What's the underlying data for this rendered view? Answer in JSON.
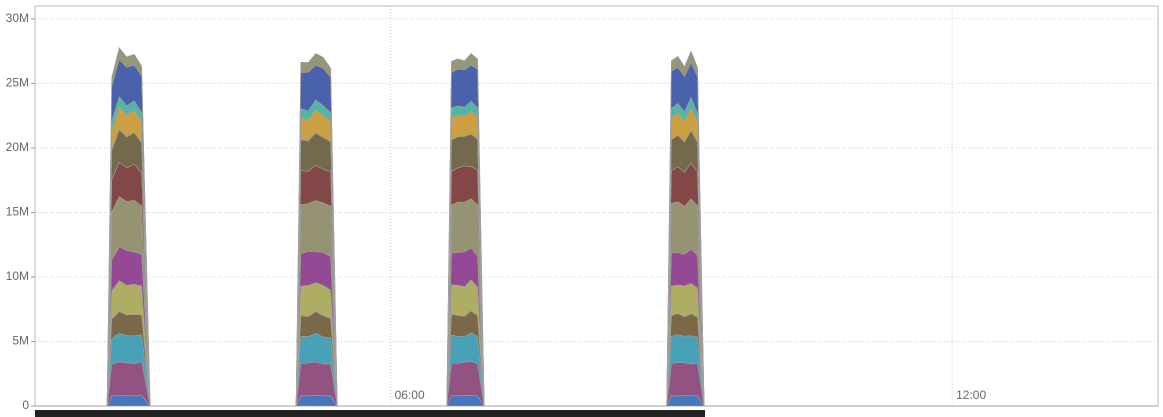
{
  "chart_data": {
    "type": "stacked_area",
    "x": [
      2.2,
      2.97,
      3.02,
      3.1,
      3.18,
      3.26,
      3.34,
      3.43,
      4.99,
      5.04,
      5.12,
      5.2,
      5.28,
      5.36,
      5.43,
      6.6,
      6.65,
      6.72,
      6.79,
      6.86,
      6.93,
      7.0,
      8.95,
      9.0,
      9.07,
      9.14,
      9.21,
      9.28,
      9.35,
      14.2
    ],
    "xlim": [
      2.2,
      14.2
    ],
    "xticks": [
      {
        "value": 6,
        "label": "06:00"
      },
      {
        "value": 12,
        "label": "12:00"
      }
    ],
    "ylim": [
      0,
      31000000
    ],
    "yticks": [
      0,
      {
        "value": 5000000,
        "label": "5M"
      },
      {
        "value": 10000000,
        "label": "10M"
      },
      {
        "value": 15000000,
        "label": "15M"
      },
      {
        "value": 20000000,
        "label": "20M"
      },
      {
        "value": 25000000,
        "label": "25M"
      },
      {
        "value": 30000000,
        "label": "30M"
      }
    ],
    "grid": true,
    "series": [
      {
        "color": "#3d6fb8",
        "values": [
          0,
          0,
          780000,
          820000,
          800000,
          790000,
          810000,
          0,
          0,
          800000,
          790000,
          820000,
          800000,
          780000,
          0,
          0,
          790000,
          810000,
          800000,
          820000,
          790000,
          0,
          0,
          800000,
          780000,
          810000,
          800000,
          790000,
          0,
          0
        ]
      },
      {
        "color": "#8c4a7c",
        "values": [
          0,
          0,
          2450000,
          2600000,
          2550000,
          2500000,
          2650000,
          0,
          0,
          2500000,
          2550000,
          2600000,
          2450000,
          2500000,
          0,
          0,
          2550000,
          2500000,
          2600000,
          2650000,
          2500000,
          0,
          0,
          2500000,
          2600000,
          2550000,
          2450000,
          2550000,
          0,
          0
        ]
      },
      {
        "color": "#3d9db3",
        "values": [
          0,
          0,
          2000000,
          2200000,
          2100000,
          2150000,
          2050000,
          0,
          0,
          2100000,
          2050000,
          2200000,
          2100000,
          2000000,
          0,
          0,
          2150000,
          2100000,
          2000000,
          2200000,
          2100000,
          0,
          0,
          2100000,
          2150000,
          2050000,
          2200000,
          2000000,
          0,
          0
        ]
      },
      {
        "color": "#73603f",
        "values": [
          0,
          0,
          1500000,
          1700000,
          1600000,
          1650000,
          1550000,
          0,
          0,
          1600000,
          1550000,
          1700000,
          1650000,
          1500000,
          0,
          0,
          1650000,
          1600000,
          1550000,
          1700000,
          1600000,
          0,
          0,
          1600000,
          1650000,
          1500000,
          1700000,
          1550000,
          0,
          0
        ]
      },
      {
        "color": "#aaa95c",
        "values": [
          0,
          0,
          2200000,
          2400000,
          2300000,
          2350000,
          2250000,
          0,
          0,
          2300000,
          2400000,
          2250000,
          2350000,
          2200000,
          0,
          0,
          2250000,
          2350000,
          2300000,
          2400000,
          2200000,
          0,
          0,
          2300000,
          2200000,
          2400000,
          2350000,
          2250000,
          0,
          0
        ]
      },
      {
        "color": "#8e3f8e",
        "values": [
          0,
          0,
          2400000,
          2600000,
          2700000,
          2500000,
          2450000,
          0,
          0,
          2500000,
          2650000,
          2400000,
          2550000,
          2600000,
          0,
          0,
          2450000,
          2550000,
          2700000,
          2500000,
          2400000,
          0,
          0,
          2600000,
          2500000,
          2450000,
          2650000,
          2550000,
          0,
          0
        ]
      },
      {
        "color": "#908d6a",
        "values": [
          0,
          0,
          3700000,
          3900000,
          3800000,
          4000000,
          3750000,
          0,
          0,
          3800000,
          3700000,
          3950000,
          3850000,
          3900000,
          0,
          0,
          3750000,
          3900000,
          3850000,
          3800000,
          4000000,
          0,
          0,
          3800000,
          3950000,
          3700000,
          3900000,
          3850000,
          0,
          0
        ]
      },
      {
        "color": "#7c3d3d",
        "values": [
          0,
          0,
          2500000,
          2700000,
          2600000,
          2800000,
          2550000,
          0,
          0,
          2650000,
          2500000,
          2750000,
          2600000,
          2700000,
          0,
          0,
          2600000,
          2650000,
          2800000,
          2500000,
          2700000,
          0,
          0,
          2550000,
          2700000,
          2650000,
          2800000,
          2600000,
          0,
          0
        ]
      },
      {
        "color": "#6b6242",
        "values": [
          0,
          0,
          2300000,
          2500000,
          2400000,
          2450000,
          2350000,
          0,
          0,
          2400000,
          2350000,
          2500000,
          2450000,
          2300000,
          0,
          0,
          2450000,
          2400000,
          2300000,
          2500000,
          2400000,
          0,
          0,
          2400000,
          2450000,
          2350000,
          2500000,
          2300000,
          0,
          0
        ]
      },
      {
        "color": "#c89a3a",
        "values": [
          0,
          0,
          1600000,
          1800000,
          1700000,
          1750000,
          1650000,
          0,
          0,
          1700000,
          1650000,
          1800000,
          1750000,
          1600000,
          0,
          0,
          1750000,
          1700000,
          1600000,
          1800000,
          1700000,
          0,
          0,
          1700000,
          1750000,
          1650000,
          1800000,
          1600000,
          0,
          0
        ]
      },
      {
        "color": "#45b3a0",
        "values": [
          0,
          0,
          650000,
          750000,
          700000,
          720000,
          680000,
          0,
          0,
          700000,
          680000,
          750000,
          720000,
          650000,
          0,
          0,
          720000,
          700000,
          650000,
          750000,
          700000,
          0,
          0,
          700000,
          720000,
          680000,
          750000,
          650000,
          0,
          0
        ]
      },
      {
        "color": "#4058a8",
        "values": [
          0,
          0,
          2700000,
          2900000,
          3000000,
          2750000,
          2850000,
          0,
          0,
          2800000,
          3000000,
          2700000,
          2900000,
          2750000,
          0,
          0,
          2750000,
          2850000,
          2900000,
          2800000,
          3000000,
          0,
          0,
          2900000,
          2800000,
          2750000,
          2700000,
          2850000,
          0,
          0
        ]
      },
      {
        "color": "#8f9170",
        "values": [
          0,
          0,
          700000,
          900000,
          800000,
          850000,
          750000,
          0,
          0,
          800000,
          750000,
          900000,
          850000,
          700000,
          0,
          0,
          850000,
          800000,
          700000,
          900000,
          800000,
          0,
          0,
          800000,
          850000,
          750000,
          900000,
          700000,
          0,
          0
        ]
      }
    ]
  }
}
